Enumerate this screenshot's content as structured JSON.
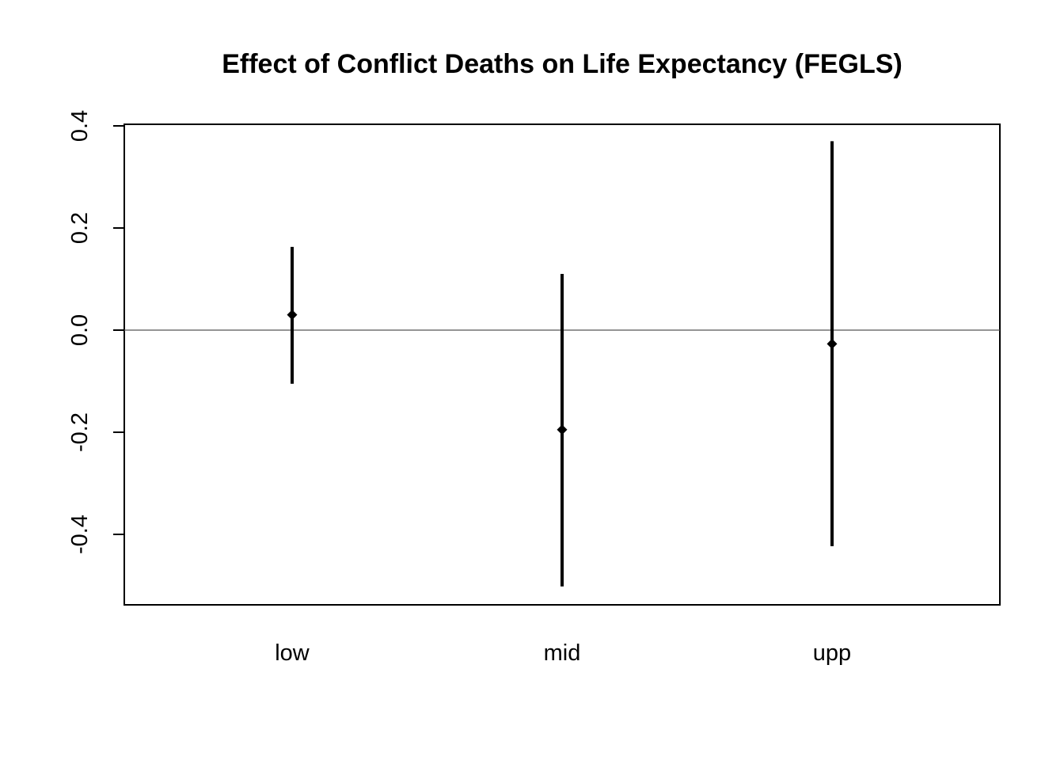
{
  "chart_data": {
    "type": "scatter",
    "title": "Effect of Conflict Deaths on Life Expectancy (FEGLS)",
    "xlabel": "",
    "ylabel": "",
    "categories": [
      "low",
      "mid",
      "upp"
    ],
    "estimates": [
      0.03,
      -0.195,
      -0.027
    ],
    "lower": [
      -0.105,
      -0.502,
      -0.423
    ],
    "upper": [
      0.163,
      0.11,
      0.37
    ],
    "ylim": [
      -0.54,
      0.4
    ],
    "yticks": [
      -0.4,
      -0.2,
      0.0,
      0.2,
      0.4
    ],
    "ytick_labels": [
      "-0.4",
      "-0.2",
      "0.0",
      "0.2",
      "0.4"
    ],
    "reference_line": 0.0,
    "marker": "diamond",
    "color": "#000000",
    "grid": false
  }
}
